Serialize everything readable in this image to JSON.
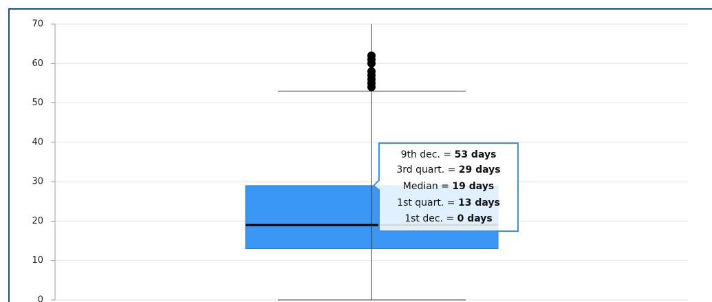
{
  "chart_data": {
    "type": "box",
    "ylim": [
      0,
      70
    ],
    "yticks": [
      0,
      10,
      20,
      30,
      40,
      50,
      60,
      70
    ],
    "grid": true,
    "color": "#3a97f5",
    "box": {
      "whishi": 53,
      "q3": 29,
      "med": 19,
      "q1": 13,
      "whislo": 0
    },
    "box_labels": {
      "whishi": "9th dec. =",
      "q3": "3rd quart. =",
      "med": "Median =",
      "q1": "1st quart. =",
      "whislo": "1st dec. ="
    },
    "value_labels": {
      "whishi": "53 days",
      "q3": "29 days",
      "med": "19 days",
      "q1": "13 days",
      "whislo": "0 days"
    },
    "fliers": [
      54,
      55,
      56,
      57,
      58,
      60,
      61,
      62
    ]
  }
}
